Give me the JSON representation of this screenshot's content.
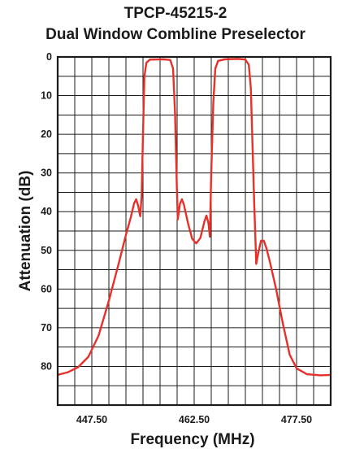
{
  "chart_data": {
    "type": "line",
    "title": "TPCP-45215-2",
    "subtitle": "Dual Window Combline Preselector",
    "xlabel": "Frequency (MHz)",
    "ylabel": "Attenuation (dB)",
    "xlim": [
      442.5,
      482.5
    ],
    "ylim": [
      0,
      90
    ],
    "y_inverted": true,
    "grid": true,
    "x_ticks": [
      {
        "value": 447.5,
        "label": "447.50"
      },
      {
        "value": 462.5,
        "label": "462.50"
      },
      {
        "value": 477.5,
        "label": "477.50"
      }
    ],
    "y_ticks": [
      {
        "value": 0,
        "label": "0"
      },
      {
        "value": 10,
        "label": "10"
      },
      {
        "value": 20,
        "label": "20"
      },
      {
        "value": 30,
        "label": "30"
      },
      {
        "value": 40,
        "label": "40"
      },
      {
        "value": 50,
        "label": "50"
      },
      {
        "value": 60,
        "label": "60"
      },
      {
        "value": 70,
        "label": "70"
      },
      {
        "value": 80,
        "label": "80"
      }
    ],
    "series": [
      {
        "color": "#e8302a",
        "points": [
          [
            442.5,
            82.2
          ],
          [
            444.0,
            81.5
          ],
          [
            445.5,
            80.2
          ],
          [
            447.0,
            77.5
          ],
          [
            448.5,
            72.0
          ],
          [
            450.0,
            63.0
          ],
          [
            451.5,
            53.0
          ],
          [
            452.5,
            46.0
          ],
          [
            453.2,
            41.5
          ],
          [
            453.7,
            37.8
          ],
          [
            454.0,
            36.8
          ],
          [
            454.3,
            38.5
          ],
          [
            454.6,
            41.2
          ],
          [
            454.8,
            36.0
          ],
          [
            455.0,
            20.0
          ],
          [
            455.2,
            5.0
          ],
          [
            455.5,
            1.5
          ],
          [
            456.0,
            0.7
          ],
          [
            458.0,
            0.6
          ],
          [
            459.0,
            0.8
          ],
          [
            459.4,
            3.0
          ],
          [
            459.7,
            15.0
          ],
          [
            459.9,
            30.0
          ],
          [
            460.1,
            42.0
          ],
          [
            460.4,
            38.0
          ],
          [
            460.7,
            36.8
          ],
          [
            461.0,
            38.2
          ],
          [
            461.6,
            43.0
          ],
          [
            462.2,
            47.0
          ],
          [
            462.8,
            48.2
          ],
          [
            463.4,
            46.8
          ],
          [
            464.0,
            42.5
          ],
          [
            464.3,
            41.0
          ],
          [
            464.6,
            43.0
          ],
          [
            464.8,
            46.5
          ],
          [
            465.0,
            30.0
          ],
          [
            465.3,
            12.0
          ],
          [
            465.6,
            3.0
          ],
          [
            466.0,
            1.0
          ],
          [
            467.0,
            0.6
          ],
          [
            469.0,
            0.5
          ],
          [
            470.0,
            0.7
          ],
          [
            470.5,
            2.0
          ],
          [
            470.8,
            8.0
          ],
          [
            471.0,
            20.0
          ],
          [
            471.3,
            38.0
          ],
          [
            471.6,
            53.5
          ],
          [
            471.9,
            50.5
          ],
          [
            472.3,
            47.5
          ],
          [
            472.7,
            47.5
          ],
          [
            473.1,
            49.5
          ],
          [
            473.6,
            53.0
          ],
          [
            474.5,
            60.0
          ],
          [
            475.5,
            69.0
          ],
          [
            476.5,
            77.0
          ],
          [
            477.5,
            80.5
          ],
          [
            479.0,
            82.0
          ],
          [
            481.0,
            82.3
          ],
          [
            482.5,
            82.2
          ]
        ]
      }
    ]
  }
}
